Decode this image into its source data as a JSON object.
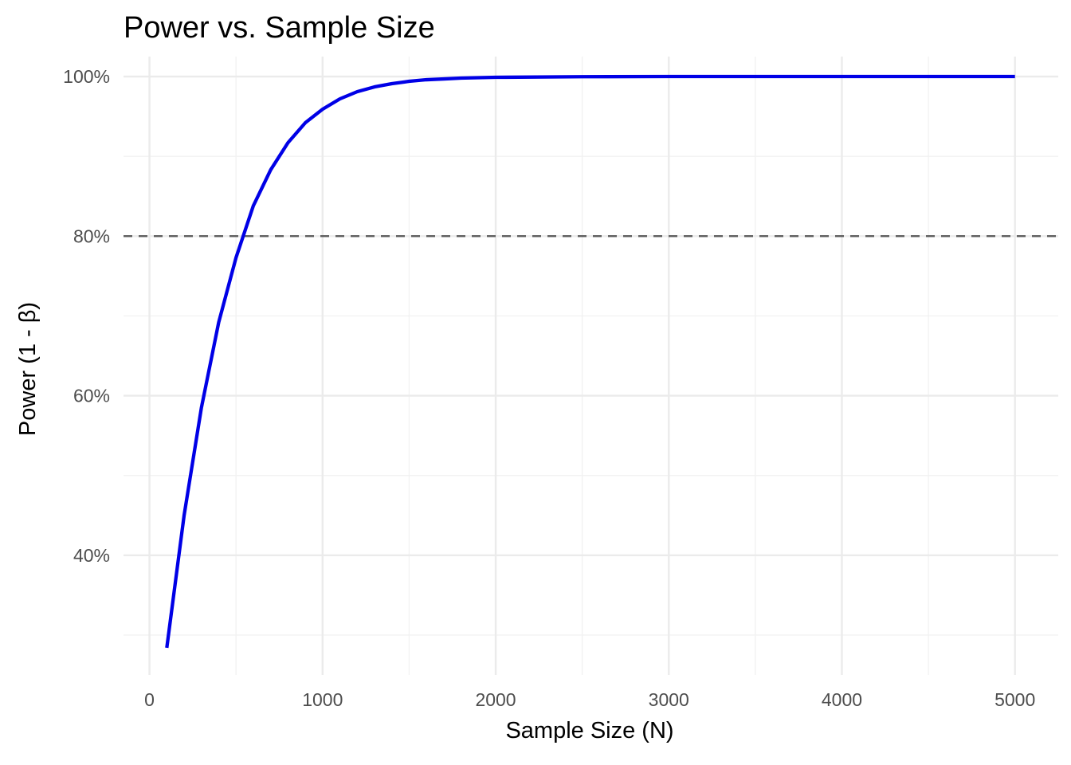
{
  "chart_data": {
    "type": "line",
    "title": "Power vs. Sample Size",
    "xlabel": "Sample Size (N)",
    "ylabel": "Power (1 - β)",
    "xlim": [
      -150,
      5250
    ],
    "ylim": [
      0.25,
      1.025
    ],
    "x_ticks": [
      0,
      1000,
      2000,
      3000,
      4000,
      5000
    ],
    "x_tick_labels": [
      "0",
      "1000",
      "2000",
      "3000",
      "4000",
      "5000"
    ],
    "x_minor_ticks": [
      500,
      1500,
      2500,
      3500,
      4500
    ],
    "y_ticks": [
      0.4,
      0.6,
      0.8,
      1.0
    ],
    "y_tick_labels": [
      "40%",
      "60%",
      "80%",
      "100%"
    ],
    "y_minor_ticks": [
      0.3,
      0.5,
      0.7,
      0.9
    ],
    "grid": true,
    "series": [
      {
        "color": "#0000e6",
        "x": [
          100,
          200,
          300,
          400,
          500,
          600,
          700,
          800,
          900,
          1000,
          1100,
          1200,
          1300,
          1400,
          1500,
          1600,
          1700,
          1800,
          1900,
          2000,
          2500,
          3000,
          3500,
          4000,
          4500,
          5000
        ],
        "y": [
          0.284,
          0.45,
          0.585,
          0.692,
          0.773,
          0.838,
          0.883,
          0.917,
          0.942,
          0.959,
          0.972,
          0.981,
          0.987,
          0.991,
          0.994,
          0.996,
          0.997,
          0.998,
          0.9985,
          0.999,
          0.9998,
          1.0,
          1.0,
          1.0,
          1.0,
          1.0
        ]
      }
    ],
    "reference_lines": [
      {
        "axis": "y",
        "value": 0.8,
        "style": "dashed",
        "color": "#595959"
      }
    ]
  }
}
